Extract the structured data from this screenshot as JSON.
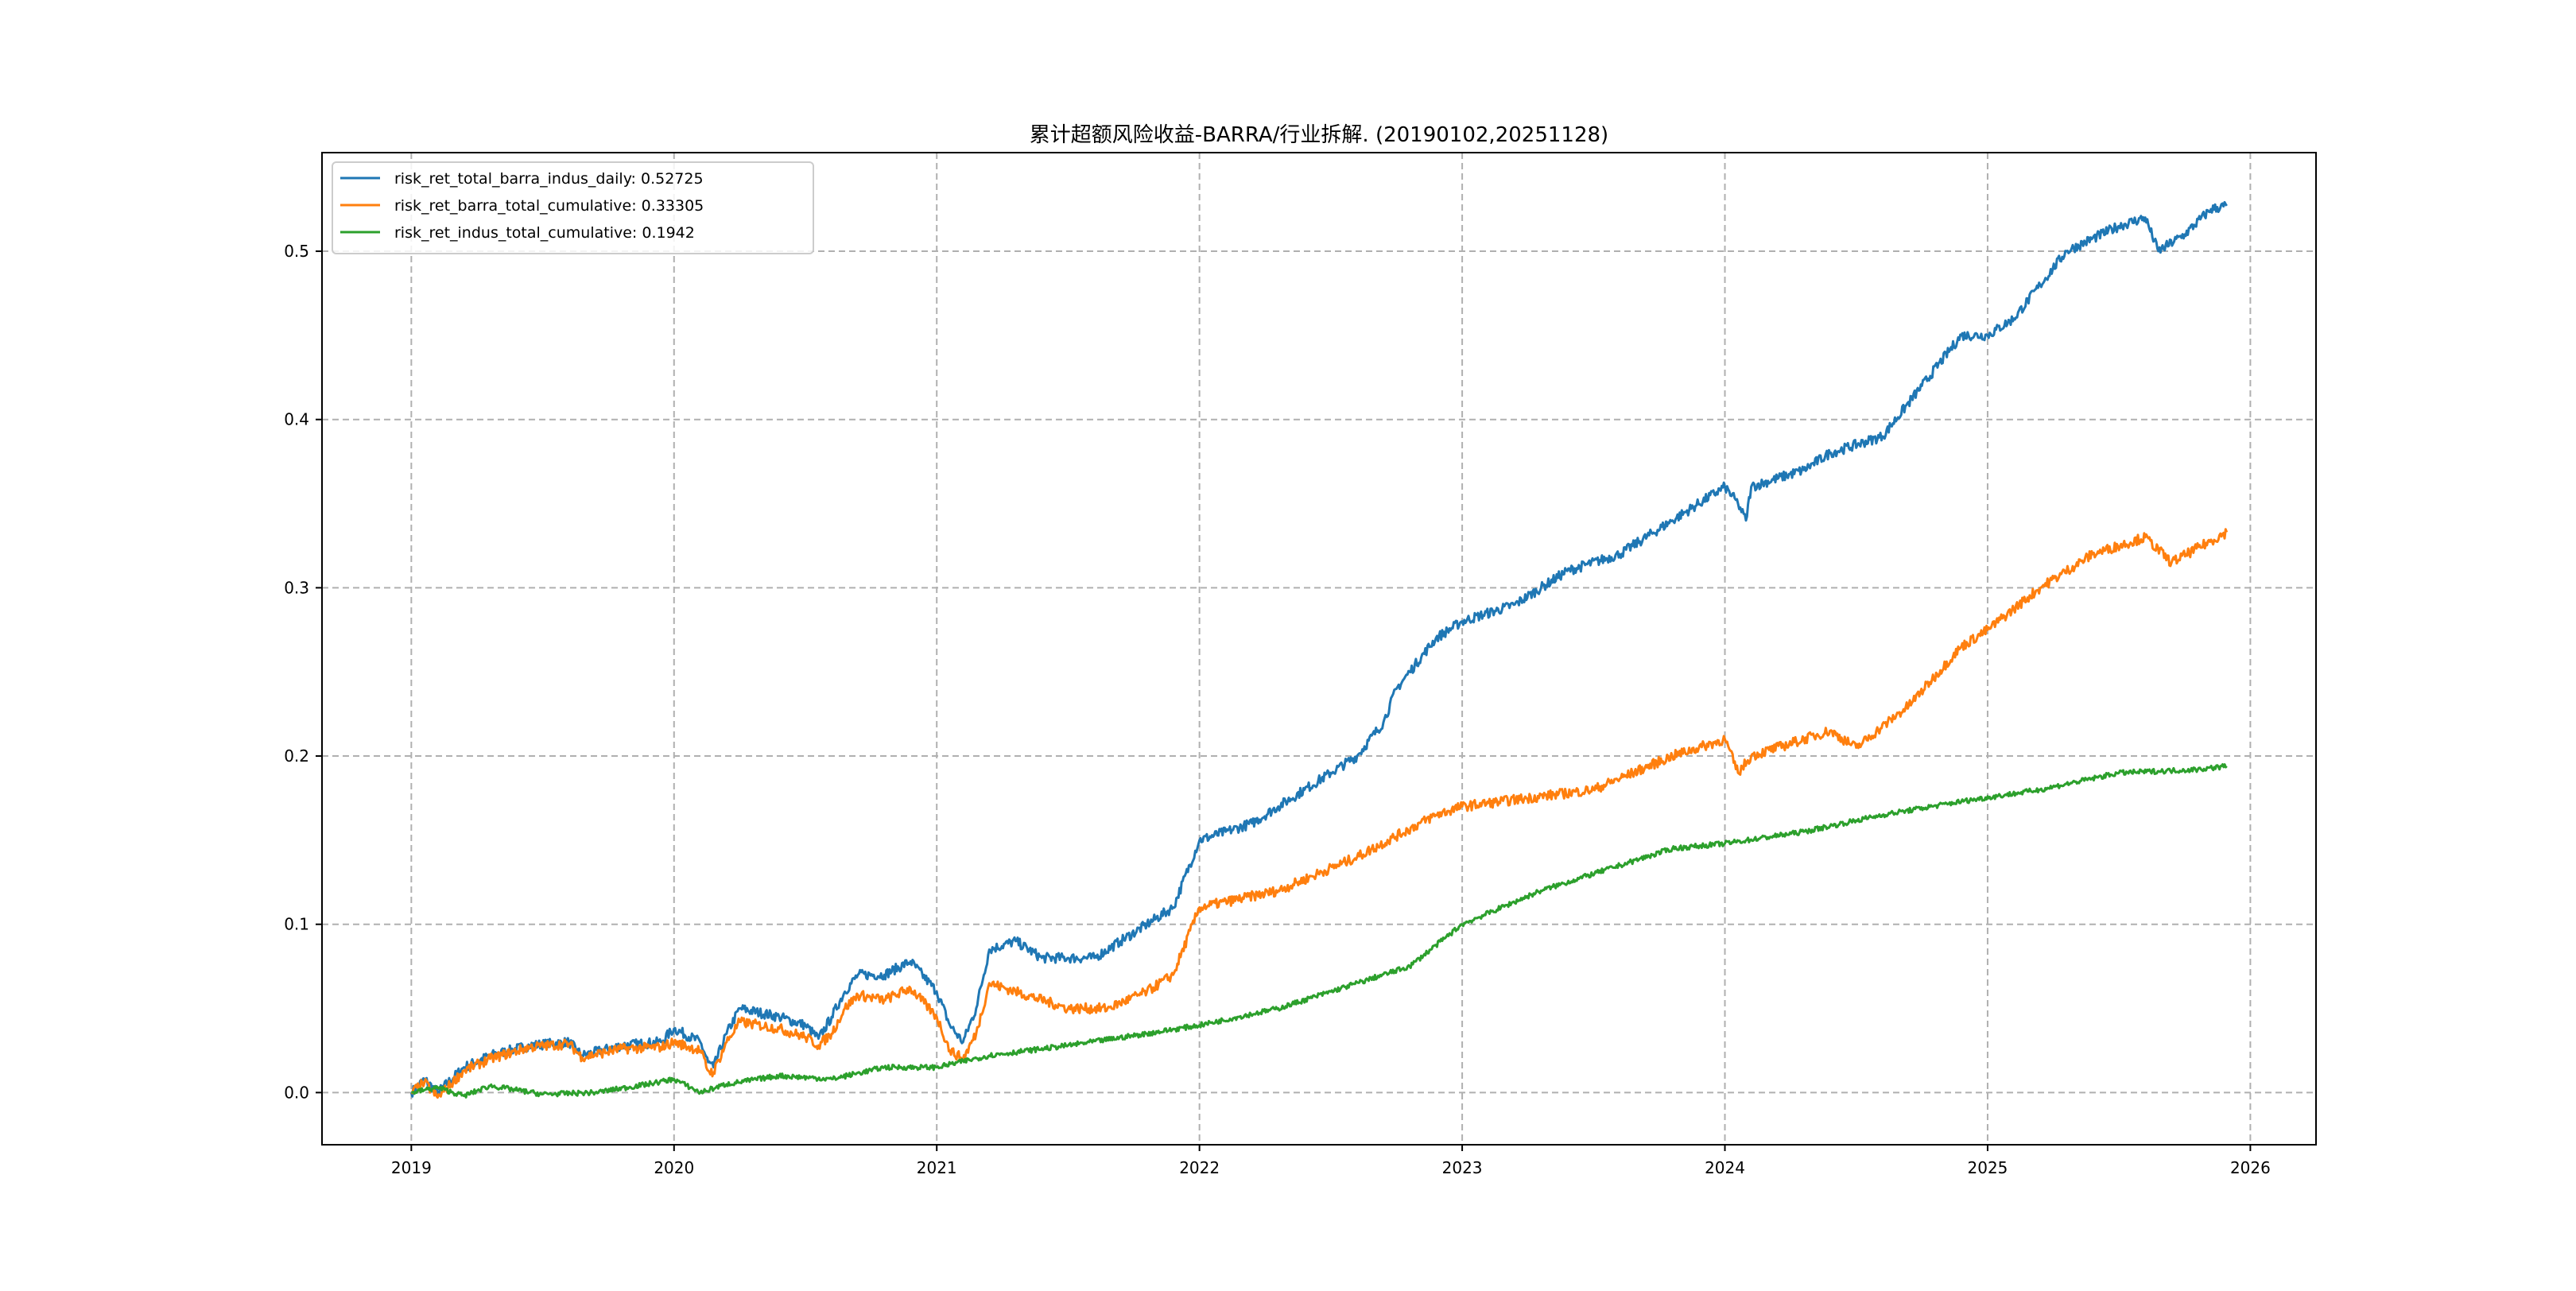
{
  "chart_data": {
    "type": "line",
    "title": "累计超额风险收益-BARRA/行业拆解. (20190102,20251128)",
    "xlabel": "",
    "ylabel": "",
    "xlim": [
      2018.66,
      2026.25
    ],
    "ylim": [
      -0.031,
      0.5586
    ],
    "xticks": [
      2019,
      2020,
      2021,
      2022,
      2023,
      2024,
      2025,
      2026
    ],
    "xtick_labels": [
      "2019",
      "2020",
      "2021",
      "2022",
      "2023",
      "2024",
      "2025",
      "2026"
    ],
    "yticks": [
      0.0,
      0.1,
      0.2,
      0.3,
      0.4,
      0.5
    ],
    "ytick_labels": [
      "0.0",
      "0.1",
      "0.2",
      "0.3",
      "0.4",
      "0.5"
    ],
    "grid": true,
    "legend_position": "top-left",
    "series": [
      {
        "name": "risk_ret_total_barra_indus_daily: 0.52725",
        "color": "#1f77b4",
        "x": [
          2019.0,
          2019.05,
          2019.1,
          2019.2,
          2019.3,
          2019.45,
          2019.6,
          2019.65,
          2019.8,
          2019.95,
          2020.0,
          2020.1,
          2020.13,
          2020.15,
          2020.2,
          2020.25,
          2020.4,
          2020.5,
          2020.55,
          2020.6,
          2020.65,
          2020.7,
          2020.8,
          2020.9,
          2021.0,
          2021.05,
          2021.1,
          2021.15,
          2021.2,
          2021.3,
          2021.4,
          2021.5,
          2021.6,
          2021.7,
          2021.8,
          2021.9,
          2022.0,
          2022.1,
          2022.2,
          2022.3,
          2022.4,
          2022.5,
          2022.6,
          2022.7,
          2022.75,
          2022.8,
          2022.9,
          2023.0,
          2023.2,
          2023.4,
          2023.6,
          2023.8,
          2024.0,
          2024.05,
          2024.08,
          2024.1,
          2024.3,
          2024.4,
          2024.6,
          2024.75,
          2024.9,
          2025.0,
          2025.1,
          2025.2,
          2025.3,
          2025.5,
          2025.6,
          2025.65,
          2025.75,
          2025.85,
          2025.91
        ],
        "y": [
          0.0,
          0.008,
          0.0,
          0.015,
          0.022,
          0.028,
          0.03,
          0.022,
          0.028,
          0.03,
          0.038,
          0.03,
          0.018,
          0.015,
          0.035,
          0.05,
          0.045,
          0.04,
          0.032,
          0.045,
          0.06,
          0.07,
          0.07,
          0.078,
          0.06,
          0.04,
          0.03,
          0.05,
          0.085,
          0.09,
          0.08,
          0.08,
          0.08,
          0.09,
          0.1,
          0.11,
          0.15,
          0.155,
          0.16,
          0.17,
          0.18,
          0.19,
          0.2,
          0.22,
          0.24,
          0.25,
          0.27,
          0.28,
          0.29,
          0.31,
          0.32,
          0.34,
          0.36,
          0.35,
          0.34,
          0.36,
          0.37,
          0.38,
          0.39,
          0.42,
          0.45,
          0.45,
          0.46,
          0.48,
          0.5,
          0.515,
          0.52,
          0.5,
          0.51,
          0.525,
          0.527
        ]
      },
      {
        "name": "risk_ret_barra_total_cumulative: 0.33305",
        "color": "#ff7f0e",
        "x": [
          2019.0,
          2019.05,
          2019.1,
          2019.2,
          2019.3,
          2019.45,
          2019.6,
          2019.65,
          2019.8,
          2019.95,
          2020.0,
          2020.1,
          2020.13,
          2020.15,
          2020.2,
          2020.25,
          2020.4,
          2020.5,
          2020.55,
          2020.6,
          2020.65,
          2020.7,
          2020.8,
          2020.9,
          2021.0,
          2021.05,
          2021.1,
          2021.15,
          2021.2,
          2021.3,
          2021.5,
          2021.65,
          2021.8,
          2021.9,
          2022.0,
          2022.3,
          2022.6,
          2022.9,
          2023.0,
          2023.5,
          2023.8,
          2024.0,
          2024.05,
          2024.1,
          2024.4,
          2024.5,
          2024.7,
          2024.9,
          2025.0,
          2025.2,
          2025.4,
          2025.6,
          2025.7,
          2025.91
        ],
        "y": [
          0.0,
          0.006,
          -0.003,
          0.013,
          0.02,
          0.027,
          0.029,
          0.021,
          0.026,
          0.027,
          0.03,
          0.025,
          0.013,
          0.012,
          0.03,
          0.042,
          0.038,
          0.033,
          0.028,
          0.035,
          0.05,
          0.058,
          0.055,
          0.062,
          0.045,
          0.025,
          0.02,
          0.035,
          0.065,
          0.06,
          0.05,
          0.05,
          0.06,
          0.07,
          0.11,
          0.12,
          0.14,
          0.165,
          0.17,
          0.18,
          0.2,
          0.21,
          0.19,
          0.2,
          0.215,
          0.205,
          0.23,
          0.265,
          0.275,
          0.3,
          0.32,
          0.33,
          0.315,
          0.333
        ]
      },
      {
        "name": "risk_ret_indus_total_cumulative: 0.1942",
        "color": "#2ca02c",
        "x": [
          2019.0,
          2019.1,
          2019.2,
          2019.3,
          2019.5,
          2019.7,
          2019.9,
          2020.0,
          2020.1,
          2020.2,
          2020.4,
          2020.6,
          2020.8,
          2021.0,
          2021.2,
          2021.5,
          2021.8,
          2022.0,
          2022.3,
          2022.5,
          2022.8,
          2023.0,
          2023.3,
          2023.6,
          2023.8,
          2024.0,
          2024.3,
          2024.6,
          2024.9,
          2025.2,
          2025.5,
          2025.8,
          2025.91
        ],
        "y": [
          0.0,
          0.003,
          -0.002,
          0.004,
          -0.001,
          0.0,
          0.005,
          0.008,
          0.0,
          0.005,
          0.01,
          0.008,
          0.015,
          0.015,
          0.022,
          0.028,
          0.035,
          0.04,
          0.05,
          0.06,
          0.075,
          0.1,
          0.12,
          0.135,
          0.145,
          0.148,
          0.155,
          0.165,
          0.173,
          0.18,
          0.19,
          0.192,
          0.194
        ]
      }
    ]
  }
}
